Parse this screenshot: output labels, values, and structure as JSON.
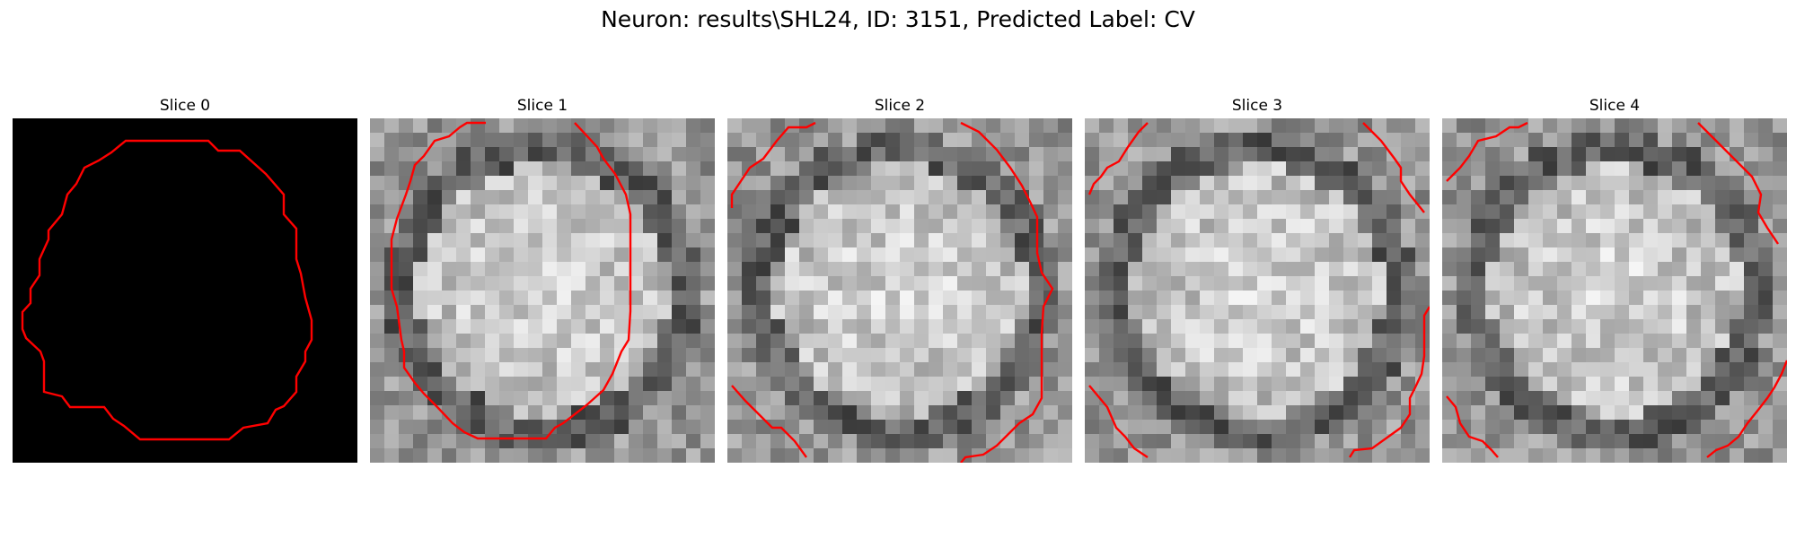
{
  "figure": {
    "title": "Neuron: results\\SHL24, ID: 3151, Predicted Label: CV"
  },
  "panels": [
    {
      "title": "Slice 0",
      "background": "black",
      "texture_seed": 0
    },
    {
      "title": "Slice 1",
      "background": "grayscale",
      "texture_seed": 11
    },
    {
      "title": "Slice 2",
      "background": "grayscale",
      "texture_seed": 23
    },
    {
      "title": "Slice 3",
      "background": "grayscale",
      "texture_seed": 37
    },
    {
      "title": "Slice 4",
      "background": "grayscale",
      "texture_seed": 51
    }
  ],
  "colors": {
    "contour": "#ff0000",
    "slice0_background": "#000000"
  },
  "contour_description": "red ROI outline"
}
